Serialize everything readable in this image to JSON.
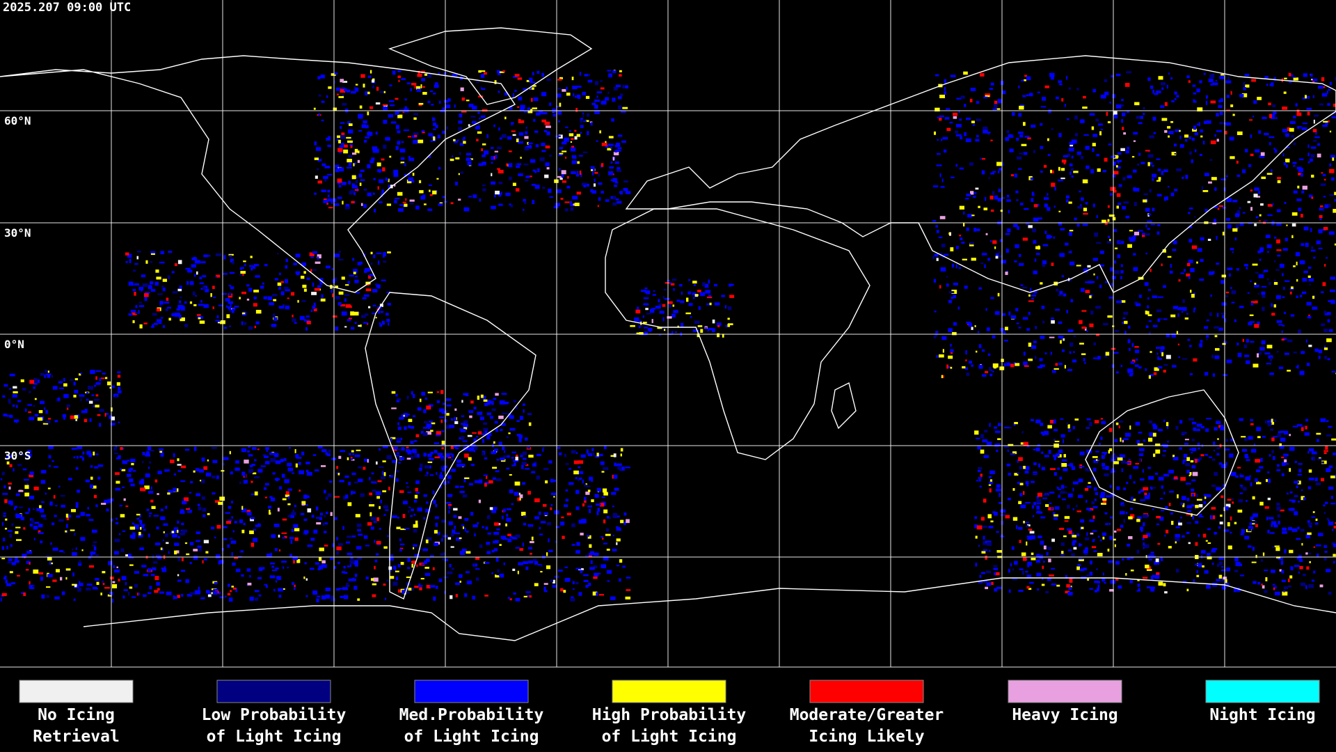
{
  "timestamp": "2025.207 09:00 UTC",
  "lat_labels": [
    "60°N",
    "30°N",
    "0°N",
    "30°S"
  ],
  "legend": [
    {
      "lines": [
        "No Icing",
        "Retrieval"
      ],
      "color": "#f0f0f0"
    },
    {
      "lines": [
        "Low Probability",
        "of Light Icing"
      ],
      "color": "#000080"
    },
    {
      "lines": [
        "Med.Probability",
        "of Light Icing"
      ],
      "color": "#0000ff"
    },
    {
      "lines": [
        "High Probability",
        "of Light Icing"
      ],
      "color": "#ffff00"
    },
    {
      "lines": [
        "Moderate/Greater",
        "Icing Likely"
      ],
      "color": "#ff0000"
    },
    {
      "lines": [
        "Heavy Icing"
      ],
      "color": "#e8a0e0"
    },
    {
      "lines": [
        "Night Icing"
      ],
      "color": "#00ffff"
    }
  ]
}
